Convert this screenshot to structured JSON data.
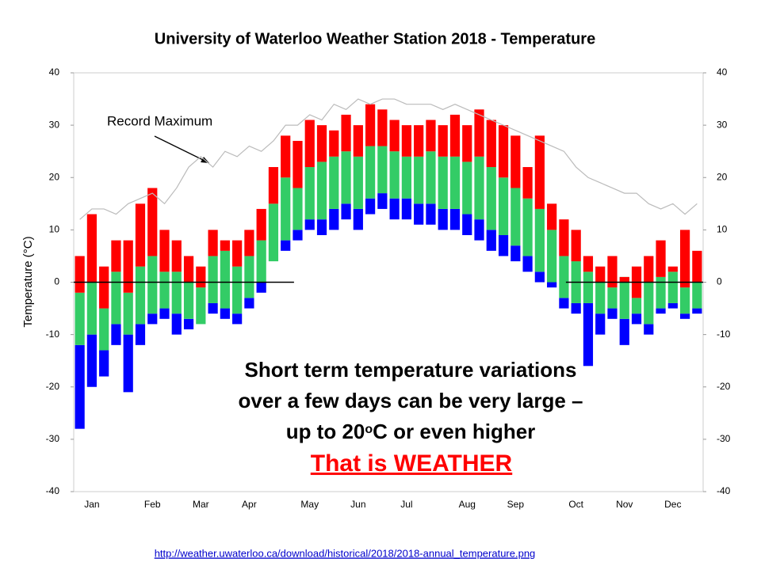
{
  "chart_data": {
    "type": "range-bar",
    "title": "University of Waterloo Weather Station 2018 - Temperature",
    "y_label": "Temperature (°C)",
    "categories": [
      null,
      "Jan",
      null,
      null,
      null,
      null,
      "Feb",
      null,
      null,
      null,
      "Mar",
      null,
      null,
      null,
      "Apr",
      null,
      null,
      null,
      null,
      "May",
      null,
      null,
      null,
      "Jun",
      null,
      null,
      null,
      "Jul",
      null,
      null,
      null,
      null,
      "Aug",
      null,
      null,
      null,
      "Sep",
      null,
      null,
      null,
      null,
      "Oct",
      null,
      null,
      null,
      "Nov",
      null,
      null,
      null,
      "Dec",
      null,
      null
    ],
    "series": [
      {
        "color": "#ff0000",
        "values": [
          5,
          13,
          3,
          8,
          8,
          15,
          18,
          10,
          8,
          5,
          3,
          10,
          8,
          8,
          10,
          14,
          22,
          28,
          27,
          31,
          30,
          29,
          32,
          30,
          34,
          33,
          31,
          30,
          30,
          31,
          30,
          32,
          30,
          33,
          31,
          30,
          28,
          22,
          28,
          15,
          12,
          10,
          5,
          3,
          5,
          0,
          3,
          5,
          8,
          3,
          10,
          6
        ]
      },
      {
        "color": "#33cc66",
        "values": [
          -2,
          0,
          -5,
          2,
          -2,
          3,
          5,
          2,
          2,
          0,
          -1,
          5,
          6,
          3,
          5,
          8,
          15,
          20,
          18,
          22,
          23,
          24,
          25,
          24,
          26,
          26,
          25,
          24,
          24,
          25,
          24,
          24,
          23,
          24,
          22,
          20,
          18,
          16,
          14,
          10,
          5,
          4,
          2,
          0,
          -1,
          1,
          -3,
          0,
          1,
          2,
          -1,
          0
        ]
      },
      {
        "color": "#33cc66",
        "values": [
          -12,
          -10,
          -13,
          -8,
          -10,
          -8,
          -6,
          -5,
          -6,
          -7,
          -8,
          -4,
          -5,
          -6,
          -3,
          0,
          4,
          8,
          10,
          12,
          12,
          14,
          15,
          14,
          16,
          17,
          16,
          16,
          15,
          15,
          14,
          14,
          13,
          12,
          10,
          9,
          7,
          5,
          2,
          0,
          -3,
          -4,
          -4,
          -6,
          -5,
          -7,
          -6,
          -8,
          -5,
          -4,
          -6,
          -5
        ]
      },
      {
        "color": "#0000ff",
        "values": [
          -28,
          -20,
          -18,
          -12,
          -21,
          -12,
          -8,
          -7,
          -10,
          -9,
          -8,
          -6,
          -7,
          -8,
          -5,
          -2,
          4,
          6,
          8,
          10,
          9,
          10,
          12,
          10,
          13,
          14,
          12,
          12,
          11,
          11,
          10,
          10,
          9,
          8,
          6,
          5,
          4,
          2,
          0,
          -1,
          -5,
          -6,
          -16,
          -10,
          -7,
          -12,
          -8,
          -10,
          -6,
          -5,
          -7,
          -6
        ]
      }
    ],
    "record_max": {
      "color": "#bbbbbb",
      "values": [
        12,
        14,
        14,
        13,
        15,
        16,
        17,
        15,
        18,
        22,
        24,
        22,
        25,
        24,
        26,
        25,
        27,
        30,
        30,
        32,
        31,
        34,
        33,
        35,
        34,
        35,
        35,
        34,
        34,
        34,
        33,
        34,
        33,
        32,
        31,
        30,
        29,
        28,
        27,
        26,
        25,
        22,
        20,
        19,
        18,
        17,
        17,
        15,
        14,
        15,
        13,
        15
      ]
    },
    "zero_line": 0,
    "ylim": [
      -40,
      40
    ],
    "yticks": [
      -40,
      -30,
      -20,
      -10,
      0,
      10,
      20,
      30,
      40
    ],
    "annotation": "Record Maximum",
    "message": [
      "Short term temperature variations",
      "over a few days can be very large –"
    ],
    "message_line3": [
      "up to 20",
      "o",
      "C or even higher"
    ],
    "emphasis": "That is WEATHER",
    "source": "http://weather.uwaterloo.ca/download/historical/2018/2018-annual_temperature.png"
  }
}
